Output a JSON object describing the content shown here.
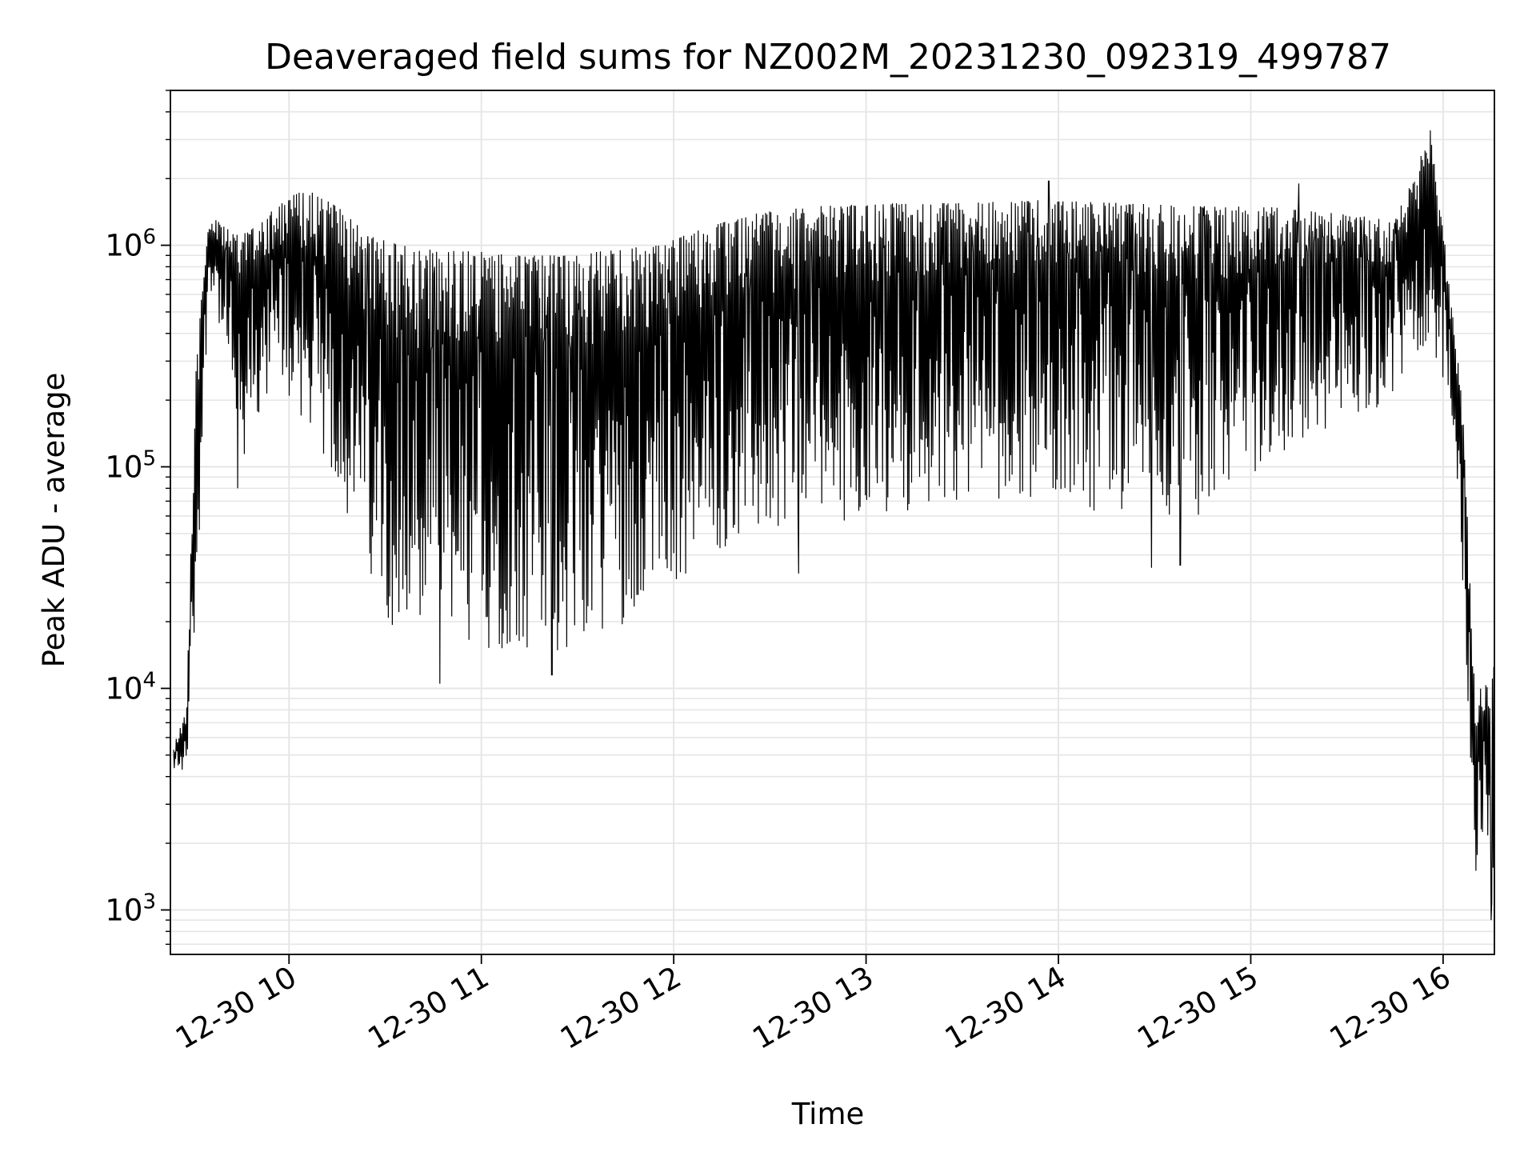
{
  "chart_data": {
    "type": "line",
    "title": "Deaveraged field sums for NZ002M_20231230_092319_499787",
    "xlabel": "Time",
    "ylabel": "Peak ADU - average",
    "x_axis": {
      "scale": "time",
      "range": [
        "2023-12-30 09:23",
        "2023-12-30 16:16"
      ]
    },
    "y_axis": {
      "scale": "log",
      "range": [
        630,
        5000000
      ]
    },
    "x_ticks": [
      {
        "t": "2023-12-30 10:00",
        "label": "12-30 10"
      },
      {
        "t": "2023-12-30 11:00",
        "label": "12-30 11"
      },
      {
        "t": "2023-12-30 12:00",
        "label": "12-30 12"
      },
      {
        "t": "2023-12-30 13:00",
        "label": "12-30 13"
      },
      {
        "t": "2023-12-30 14:00",
        "label": "12-30 14"
      },
      {
        "t": "2023-12-30 15:00",
        "label": "12-30 15"
      },
      {
        "t": "2023-12-30 16:00",
        "label": "12-30 16"
      }
    ],
    "y_ticks": [
      {
        "value": 1000,
        "base": "10",
        "exp": "3"
      },
      {
        "value": 10000,
        "base": "10",
        "exp": "4"
      },
      {
        "value": 100000,
        "base": "10",
        "exp": "5"
      },
      {
        "value": 1000000,
        "base": "10",
        "exp": "6"
      }
    ],
    "grid": true,
    "legend": "none",
    "line_color": "#000000",
    "series": [
      {
        "envelope": [
          {
            "t": "2023-12-30 09:24",
            "high": 5500,
            "low": 3800
          },
          {
            "t": "2023-12-30 09:28",
            "high": 8000,
            "low": 4200
          },
          {
            "t": "2023-12-30 09:31",
            "high": 300000,
            "low": 20000
          },
          {
            "t": "2023-12-30 09:35",
            "high": 1400000,
            "low": 700000
          },
          {
            "t": "2023-12-30 09:40",
            "high": 1200000,
            "low": 300000
          },
          {
            "t": "2023-12-30 09:45",
            "high": 1100000,
            "low": 90000
          },
          {
            "t": "2023-12-30 09:55",
            "high": 1500000,
            "low": 250000
          },
          {
            "t": "2023-12-30 10:05",
            "high": 1800000,
            "low": 150000
          },
          {
            "t": "2023-12-30 10:15",
            "high": 1500000,
            "low": 80000
          },
          {
            "t": "2023-12-30 10:25",
            "high": 1100000,
            "low": 30000
          },
          {
            "t": "2023-12-30 10:35",
            "high": 1000000,
            "low": 16000
          },
          {
            "t": "2023-12-30 10:45",
            "high": 950000,
            "low": 14000
          },
          {
            "t": "2023-12-30 10:55",
            "high": 950000,
            "low": 13000
          },
          {
            "t": "2023-12-30 11:10",
            "high": 900000,
            "low": 15000
          },
          {
            "t": "2023-12-30 11:25",
            "high": 900000,
            "low": 14000
          },
          {
            "t": "2023-12-30 11:40",
            "high": 950000,
            "low": 18000
          },
          {
            "t": "2023-12-30 11:55",
            "high": 1000000,
            "low": 24000
          },
          {
            "t": "2023-12-30 12:10",
            "high": 1200000,
            "low": 40000
          },
          {
            "t": "2023-12-30 12:25",
            "high": 1400000,
            "low": 45000
          },
          {
            "t": "2023-12-30 12:45",
            "high": 1500000,
            "low": 55000
          },
          {
            "t": "2023-12-30 13:05",
            "high": 1550000,
            "low": 60000
          },
          {
            "t": "2023-12-30 13:30",
            "high": 1550000,
            "low": 70000
          },
          {
            "t": "2023-12-30 13:55",
            "high": 1600000,
            "low": 70000
          },
          {
            "t": "2023-12-30 14:20",
            "high": 1550000,
            "low": 60000
          },
          {
            "t": "2023-12-30 14:45",
            "high": 1500000,
            "low": 60000
          },
          {
            "t": "2023-12-30 15:05",
            "high": 1500000,
            "low": 100000
          },
          {
            "t": "2023-12-30 15:25",
            "high": 1400000,
            "low": 150000
          },
          {
            "t": "2023-12-30 15:45",
            "high": 1300000,
            "low": 200000
          },
          {
            "t": "2023-12-30 15:56",
            "high": 3200000,
            "low": 400000
          },
          {
            "t": "2023-12-30 16:01",
            "high": 900000,
            "low": 200000
          },
          {
            "t": "2023-12-30 16:06",
            "high": 200000,
            "low": 30000
          },
          {
            "t": "2023-12-30 16:10",
            "high": 9000,
            "low": 1500
          },
          {
            "t": "2023-12-30 16:16",
            "high": 13000,
            "low": 1000
          }
        ],
        "spikes": [
          {
            "t": "2023-12-30 09:44",
            "value": 80000
          },
          {
            "t": "2023-12-30 10:47",
            "value": 10500
          },
          {
            "t": "2023-12-30 11:22",
            "value": 11500
          },
          {
            "t": "2023-12-30 12:39",
            "value": 33000
          },
          {
            "t": "2023-12-30 14:29",
            "value": 35000
          },
          {
            "t": "2023-12-30 14:38",
            "value": 36000
          },
          {
            "t": "2023-12-30 13:57",
            "value": 1950000
          },
          {
            "t": "2023-12-30 15:15",
            "value": 1900000
          },
          {
            "t": "2023-12-30 15:56",
            "value": 3300000
          },
          {
            "t": "2023-12-30 16:15",
            "value": 900
          }
        ]
      }
    ]
  }
}
